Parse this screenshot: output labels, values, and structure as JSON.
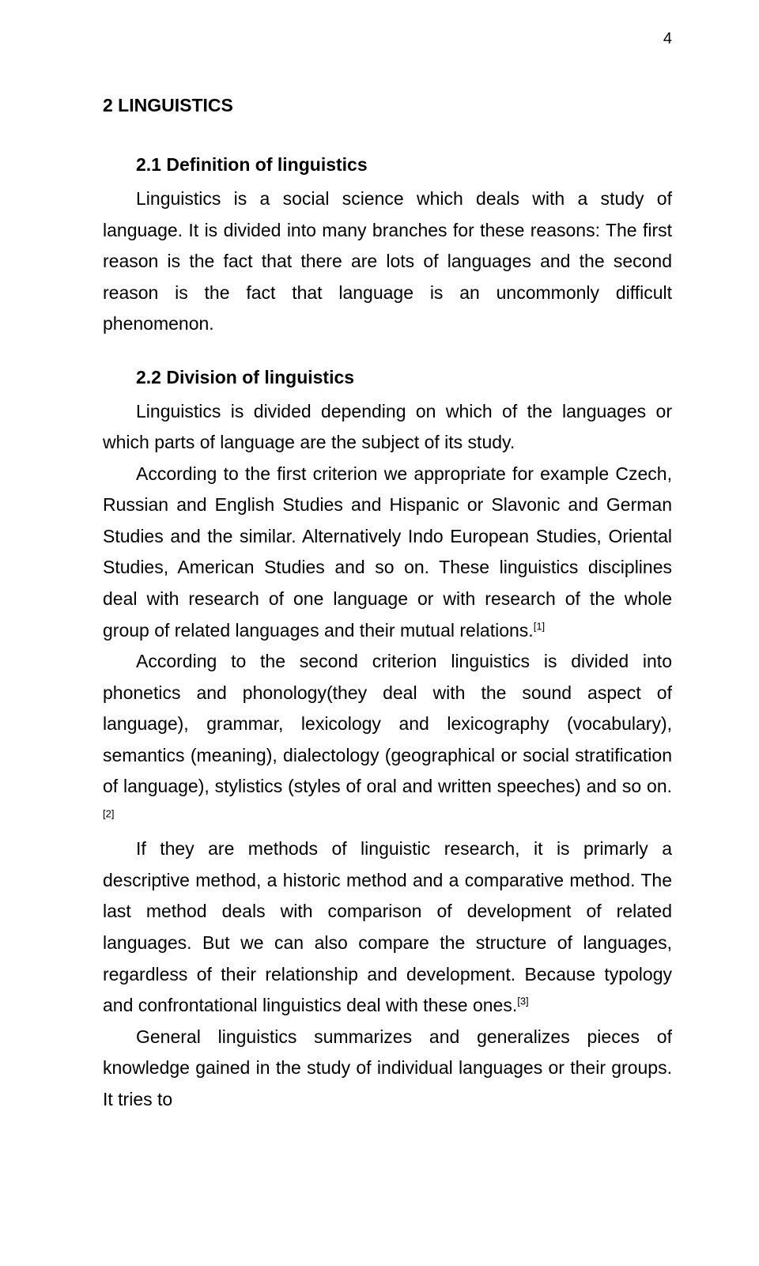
{
  "page_number": "4",
  "chapter": "2  LINGUISTICS",
  "sections": {
    "s1": {
      "title": "2.1 Definition of linguistics",
      "p1_a": "Linguistics is a social science which deals with a study of language. It is divided into many branches for these reasons: The first reason is the fact that there are lots of languages and the second reason is the fact that language is an uncommonly difficult phenomenon."
    },
    "s2": {
      "title": "2.2 Division of linguistics",
      "p1": "Linguistics is divided depending on which of the languages or which parts of language are the subject of its study.",
      "p2_a": "According to the first criterion we appropriate for example Czech, Russian and English Studies and Hispanic or Slavonic and German Studies and the similar. Alternatively Indo European Studies, Oriental Studies, American Studies and so on. These linguistics disciplines deal with research of one language or with research of the whole group of related languages and their mutual relations.",
      "ref1": "[1]",
      "p3_a": "According to the second criterion linguistics is divided into phonetics and phonology(they deal with the sound aspect of language), grammar, lexicology and lexicography (vocabulary), semantics (meaning), dialectology (geographical or social stratification of language), stylistics (styles of oral and written speeches) and so on.",
      "ref2": "[2]",
      "p4_a": "If they are methods of linguistic research, it is primarly a descriptive method, a historic method and a comparative method. The last method deals with comparison of development of related languages. But we can also compare the structure of languages, regardless of their relationship and development. Because typology and confrontational linguistics deal with these ones.",
      "ref3": "[3]",
      "p5": "General linguistics summarizes and generalizes pieces of knowledge gained in the study of individual languages or their groups. It tries to"
    }
  }
}
